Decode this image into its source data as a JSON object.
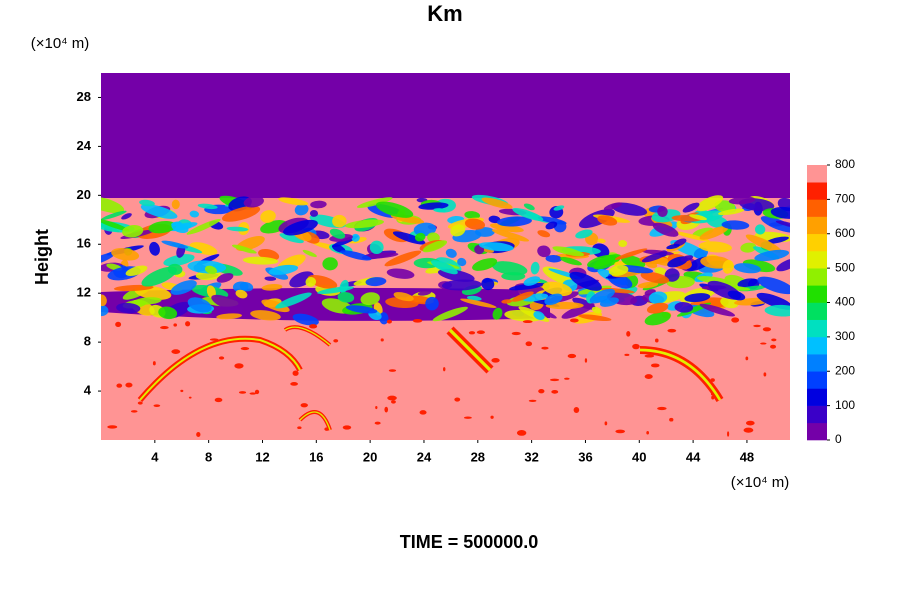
{
  "chart_data": {
    "type": "contour",
    "title": "Km",
    "ylabel": "Height",
    "y_unit_label": "(×10⁴ m)",
    "x_unit_label": "(×10⁴ m)",
    "footer": "TIME = 500000.0",
    "xlim": [
      0,
      51.2
    ],
    "xticks": [
      4,
      8,
      12,
      16,
      20,
      24,
      28,
      32,
      36,
      40,
      44,
      48
    ],
    "ylim": [
      0,
      30
    ],
    "yticks": [
      4,
      8,
      12,
      16,
      20,
      24,
      28
    ],
    "colorbar": {
      "lim": [
        0,
        800
      ],
      "ticks": [
        0,
        100,
        200,
        300,
        400,
        500,
        600,
        700,
        800
      ],
      "colors": [
        "#7400a8",
        "#3a00c8",
        "#0000e0",
        "#0040ff",
        "#0080ff",
        "#00c0ff",
        "#00e0c0",
        "#00e060",
        "#20e000",
        "#90f000",
        "#e0f000",
        "#ffd000",
        "#ffa000",
        "#ff6000",
        "#ff2000",
        "#ff9494"
      ]
    }
  }
}
